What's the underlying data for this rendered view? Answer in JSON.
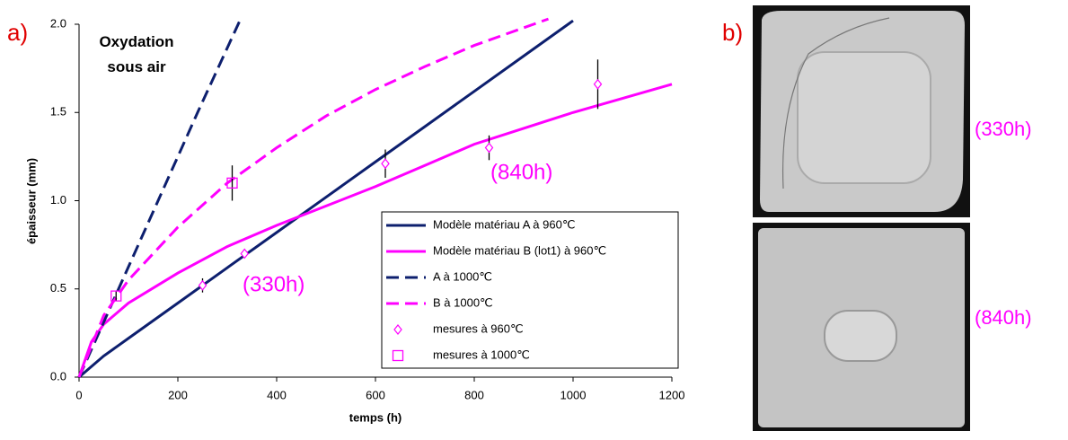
{
  "chart_data": {
    "type": "line",
    "panel_label": "a)",
    "x_label": "temps (h)",
    "y_label": "épaisseur (mm)",
    "annotations": [
      "Oxydation\nsous air",
      "(330h)",
      "(840h)"
    ],
    "xlim": [
      0,
      1200
    ],
    "xticks": [
      0,
      200,
      400,
      600,
      800,
      1000,
      1200
    ],
    "ylim": [
      0,
      2.0
    ],
    "yticks": [
      {
        "value": 0,
        "label": "0.0"
      },
      0.5,
      {
        "value": 1,
        "label": "1.0"
      },
      1.5,
      {
        "value": 2,
        "label": "2.0"
      }
    ],
    "series": [
      {
        "name": "Modèle matériau A à 960℃",
        "color": "#0d1f6e",
        "style": "solid",
        "x": [
          0,
          50,
          100,
          200,
          300,
          400,
          500,
          600,
          700,
          800,
          900,
          1000
        ],
        "values": [
          0,
          0.12,
          0.22,
          0.42,
          0.62,
          0.82,
          1.02,
          1.22,
          1.42,
          1.62,
          1.82,
          2.02
        ]
      },
      {
        "name": "Modèle matériau B (lot1) à 960℃",
        "color": "#ff00ff",
        "style": "solid",
        "x": [
          0,
          25,
          50,
          100,
          200,
          300,
          400,
          500,
          600,
          700,
          800,
          900,
          1000,
          1100,
          1200
        ],
        "values": [
          0,
          0.2,
          0.3,
          0.42,
          0.59,
          0.74,
          0.86,
          0.97,
          1.08,
          1.2,
          1.32,
          1.41,
          1.5,
          1.58,
          1.66
        ]
      },
      {
        "name": "A à 1000℃",
        "color": "#0d1f6e",
        "style": "dash",
        "x": [
          0,
          40,
          80,
          160,
          240,
          327
        ],
        "values": [
          0,
          0.25,
          0.5,
          1.0,
          1.5,
          2.03
        ]
      },
      {
        "name": "B à 1000℃",
        "color": "#ff00ff",
        "style": "dash",
        "x": [
          0,
          50,
          100,
          200,
          300,
          400,
          500,
          600,
          700,
          800,
          900,
          950
        ],
        "values": [
          0,
          0.35,
          0.55,
          0.85,
          1.1,
          1.3,
          1.48,
          1.63,
          1.76,
          1.88,
          1.98,
          2.03
        ]
      },
      {
        "name": "mesures à 960℃",
        "color": "#ff00ff",
        "marker": "diamond",
        "x": [
          250,
          335,
          620,
          830,
          1050
        ],
        "values": [
          0.52,
          0.7,
          1.21,
          1.3,
          1.66
        ],
        "errors": [
          0.04,
          0.02,
          0.08,
          0.07,
          0.14
        ]
      },
      {
        "name": "mesures à 1000℃",
        "color": "#ff00ff",
        "marker": "square",
        "x": [
          75,
          310
        ],
        "values": [
          0.46,
          1.1
        ],
        "errors": [
          0.03,
          0.1
        ]
      }
    ]
  },
  "images": {
    "panel_label": "b)",
    "labels": [
      "(330h)",
      "(840h)"
    ]
  }
}
